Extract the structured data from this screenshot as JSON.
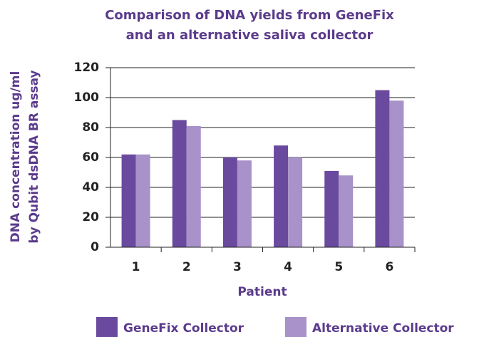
{
  "chart_data": {
    "type": "bar",
    "title": [
      "Comparison of DNA yields from GeneFix",
      "and an alternative saliva collector"
    ],
    "y_label": [
      "DNA concentration ug/ml",
      "by Qubit dsDNA BR assay"
    ],
    "x_label": "Patient",
    "categories": [
      "1",
      "2",
      "3",
      "4",
      "5",
      "6"
    ],
    "series": [
      {
        "name": "GeneFix Collector",
        "color": "#6a4a9e",
        "values": [
          62,
          85,
          60,
          68,
          51,
          105
        ]
      },
      {
        "name": "Alternative Collector",
        "color": "#a892c9",
        "values": [
          62,
          81,
          58,
          60,
          48,
          98
        ]
      }
    ],
    "ylim": [
      0,
      120
    ],
    "yticks": [
      0,
      20,
      40,
      60,
      80,
      100,
      120
    ],
    "grid": true
  }
}
